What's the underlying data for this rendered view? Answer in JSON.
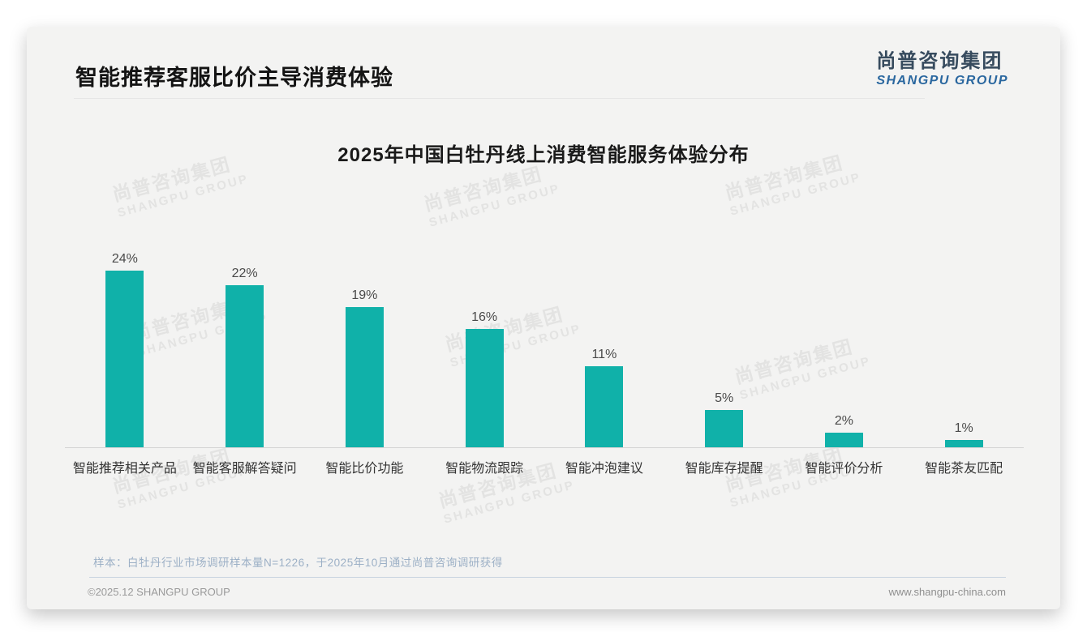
{
  "page": {
    "title": "智能推荐客服比价主导消费体验",
    "logo": {
      "cn": "尚普咨询集团",
      "en": "SHANGPU GROUP"
    },
    "watermark": {
      "cn": "尚普咨询集团",
      "en": "SHANGPU GROUP"
    },
    "note": "样本：白牡丹行业市场调研样本量N=1226，于2025年10月通过尚普咨询调研获得",
    "footer_left": "©2025.12 SHANGPU GROUP",
    "footer_right": "www.shangpu-china.com"
  },
  "chart_data": {
    "type": "bar",
    "title": "2025年中国白牡丹线上消费智能服务体验分布",
    "categories": [
      "智能推荐相关产品",
      "智能客服解答疑问",
      "智能比价功能",
      "智能物流跟踪",
      "智能冲泡建议",
      "智能库存提醒",
      "智能评价分析",
      "智能茶友匹配"
    ],
    "values": [
      24,
      22,
      19,
      16,
      11,
      5,
      2,
      1
    ],
    "unit": "%",
    "data_labels": true,
    "bar_color": "#10b1a9",
    "xlabel": "",
    "ylabel": "",
    "ylim": [
      0,
      26
    ],
    "grid": false,
    "legend": "none"
  }
}
